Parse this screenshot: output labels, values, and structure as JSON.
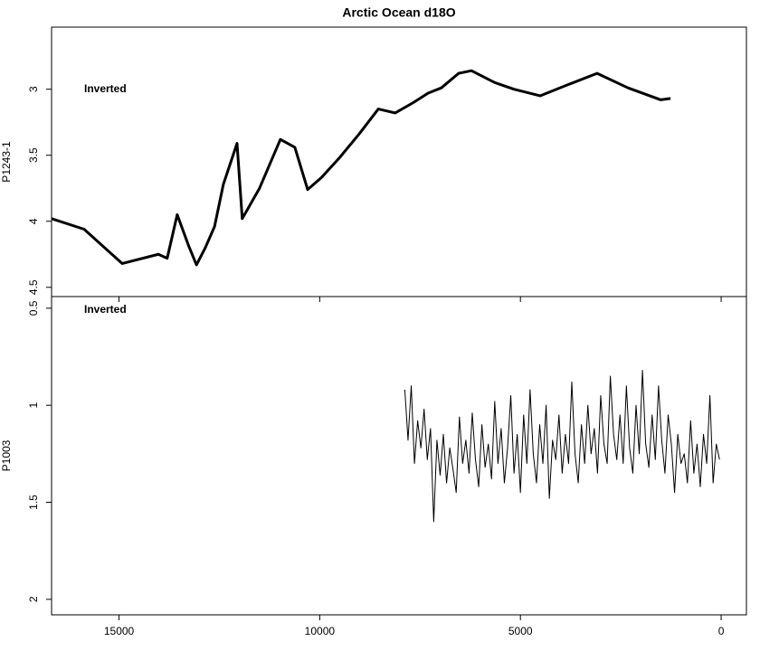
{
  "chart_data": [
    {
      "type": "line",
      "title": "Arctic Ocean d18O",
      "ylabel": "P1243-1",
      "annotation": "Inverted",
      "xlim": [
        16680,
        -630
      ],
      "xticks": [
        15000,
        10000,
        5000,
        0
      ],
      "ylim": [
        4.57,
        2.53
      ],
      "yticks": [
        3.0,
        3.5,
        4.0,
        4.5
      ],
      "linewidth": 3,
      "x": [
        16680,
        15870,
        14920,
        14020,
        13800,
        13550,
        13260,
        13070,
        12850,
        12620,
        12400,
        12060,
        11930,
        11500,
        10980,
        10620,
        10300,
        9960,
        9510,
        9020,
        8540,
        8120,
        7660,
        7300,
        6970,
        6540,
        6220,
        5640,
        5160,
        4510,
        3850,
        3090,
        2320,
        1510,
        1260
      ],
      "series": [
        {
          "color": "#000000",
          "values": [
            3.98,
            4.06,
            4.32,
            4.25,
            4.28,
            3.95,
            4.19,
            4.33,
            4.2,
            4.04,
            3.72,
            3.41,
            3.98,
            3.75,
            3.38,
            3.44,
            3.76,
            3.67,
            3.52,
            3.34,
            3.15,
            3.18,
            3.1,
            3.03,
            2.99,
            2.88,
            2.86,
            2.95,
            3.0,
            3.05,
            2.97,
            2.88,
            2.99,
            3.08,
            3.07
          ]
        }
      ]
    },
    {
      "type": "line",
      "ylabel": "P1003",
      "annotation": "Inverted",
      "xlim": [
        16680,
        -630
      ],
      "xticks": [
        15000,
        10000,
        5000,
        0
      ],
      "ylim": [
        2.08,
        0.44
      ],
      "yticks": [
        0.5,
        1.0,
        1.5,
        2.0
      ],
      "linewidth": 1,
      "x": [
        7880,
        7800,
        7720,
        7640,
        7560,
        7480,
        7400,
        7320,
        7240,
        7160,
        7080,
        7000,
        6920,
        6840,
        6760,
        6680,
        6600,
        6520,
        6440,
        6360,
        6280,
        6200,
        6120,
        6040,
        5960,
        5880,
        5800,
        5720,
        5640,
        5560,
        5480,
        5400,
        5320,
        5240,
        5160,
        5080,
        5000,
        4920,
        4840,
        4760,
        4680,
        4600,
        4520,
        4440,
        4360,
        4280,
        4200,
        4120,
        4040,
        3960,
        3880,
        3800,
        3720,
        3640,
        3560,
        3480,
        3400,
        3320,
        3240,
        3160,
        3080,
        3000,
        2920,
        2840,
        2760,
        2680,
        2600,
        2520,
        2440,
        2360,
        2280,
        2200,
        2120,
        2040,
        1960,
        1880,
        1800,
        1720,
        1640,
        1560,
        1480,
        1400,
        1320,
        1240,
        1160,
        1080,
        1000,
        920,
        840,
        760,
        680,
        600,
        520,
        440,
        360,
        280,
        200,
        120,
        40
      ],
      "series": [
        {
          "color": "#000000",
          "values": [
            0.92,
            1.18,
            0.9,
            1.3,
            1.08,
            1.22,
            1.02,
            1.28,
            1.12,
            1.6,
            1.18,
            1.36,
            1.15,
            1.4,
            1.22,
            1.33,
            1.45,
            1.06,
            1.3,
            1.18,
            1.35,
            1.04,
            1.28,
            1.42,
            1.1,
            1.32,
            1.2,
            1.38,
            0.98,
            1.3,
            1.12,
            1.4,
            1.22,
            0.95,
            1.35,
            1.15,
            1.45,
            1.05,
            1.3,
            0.92,
            1.25,
            1.4,
            1.1,
            1.3,
            1.0,
            1.48,
            1.18,
            1.28,
            1.05,
            1.35,
            1.15,
            1.3,
            0.88,
            1.25,
            1.4,
            1.1,
            1.3,
            1.0,
            1.25,
            1.12,
            1.35,
            0.95,
            1.2,
            1.3,
            0.85,
            1.15,
            1.28,
            1.05,
            1.3,
            0.9,
            1.22,
            1.35,
            1.0,
            1.25,
            0.82,
            1.2,
            1.32,
            1.05,
            1.28,
            0.9,
            1.18,
            1.35,
            1.05,
            1.2,
            1.45,
            1.15,
            1.3,
            1.25,
            1.4,
            1.08,
            1.35,
            1.2,
            1.42,
            1.15,
            1.3,
            0.95,
            1.4,
            1.2,
            1.28
          ]
        }
      ]
    }
  ]
}
